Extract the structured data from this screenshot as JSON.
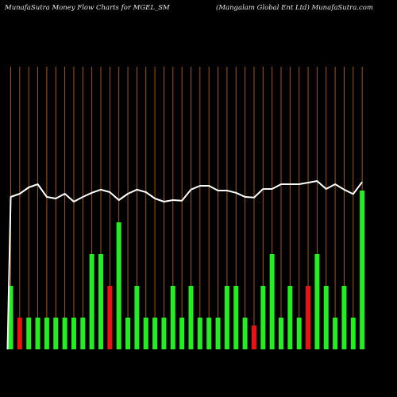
{
  "header": {
    "left": "MunafaSutra  Money Flow  Charts for MGEL_SM",
    "right": "(Mangalam Global Ent Ltd) MunafaSutra.com"
  },
  "colors": {
    "background": "#000000",
    "gridline": "#b8600b",
    "up_bar": "#22ee22",
    "down_bar": "#ee1111",
    "line": "#ffffff",
    "text": "#e8e8e8"
  },
  "chart_data": {
    "type": "bar",
    "title": "",
    "categories": [
      "",
      "",
      "",
      "",
      "",
      "",
      "",
      "",
      "",
      "",
      "",
      "",
      "",
      "",
      "",
      "",
      "",
      "",
      "",
      "",
      "",
      "",
      "",
      "",
      "",
      "",
      "",
      "",
      "",
      "",
      "",
      "",
      "",
      "",
      "",
      "",
      "",
      "",
      "",
      ""
    ],
    "series": [
      {
        "kind": "bar",
        "values": [
          2,
          1,
          1,
          1,
          1,
          1,
          1,
          1,
          1,
          3,
          3,
          2,
          4,
          1,
          2,
          1,
          1,
          1,
          2,
          1,
          2,
          1,
          1,
          1,
          2,
          2,
          1,
          0.75,
          2,
          3,
          1,
          2,
          1,
          2,
          3,
          2,
          1,
          2,
          1,
          5
        ],
        "directions": [
          "up",
          "down",
          "up",
          "up",
          "up",
          "up",
          "up",
          "up",
          "up",
          "up",
          "up",
          "down",
          "up",
          "up",
          "up",
          "up",
          "up",
          "up",
          "up",
          "up",
          "up",
          "up",
          "up",
          "up",
          "up",
          "up",
          "up",
          "down",
          "up",
          "up",
          "up",
          "up",
          "up",
          "down",
          "up",
          "up",
          "up",
          "up",
          "up",
          "up"
        ]
      },
      {
        "kind": "line",
        "values": [
          58,
          59,
          61,
          62,
          58,
          57.5,
          59,
          56.5,
          58,
          59.3,
          60.3,
          59.5,
          57,
          59,
          60.3,
          59.5,
          57.5,
          56.5,
          57,
          56.8,
          60.3,
          61.5,
          61.5,
          60,
          60,
          59.3,
          58,
          57.8,
          60.5,
          60.5,
          62,
          62,
          62,
          62.5,
          63,
          60.5,
          62,
          60.3,
          58.9,
          62.7
        ]
      }
    ],
    "ylim": [
      0,
      100
    ],
    "grid": true
  }
}
